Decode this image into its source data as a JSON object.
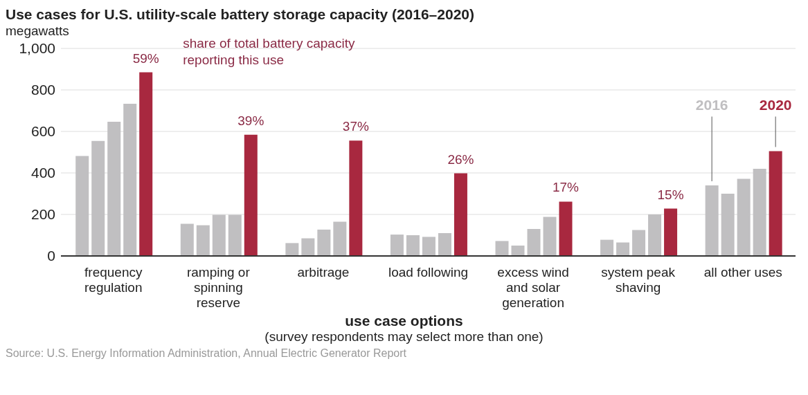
{
  "chart_data": {
    "type": "bar",
    "title": "Use cases for U.S. utility-scale battery storage capacity (2016–2020)",
    "ylabel": "megawatts",
    "xlabel": "use case options",
    "categories": [
      "frequency regulation",
      "ramping or spinning reserve",
      "arbitrage",
      "load following",
      "excess wind and solar generation",
      "system peak shaving",
      "all other uses"
    ],
    "series": [
      {
        "name": "2016",
        "color": "#c0bfc1",
        "values": [
          482,
          155,
          62,
          103,
          72,
          78,
          340
        ]
      },
      {
        "color": "#c0bfc1",
        "values": [
          554,
          148,
          85,
          100,
          50,
          65,
          300
        ]
      },
      {
        "color": "#c0bfc1",
        "values": [
          647,
          198,
          127,
          92,
          130,
          125,
          372
        ]
      },
      {
        "color": "#c0bfc1",
        "values": [
          733,
          198,
          165,
          110,
          188,
          200,
          420
        ]
      },
      {
        "name": "2020",
        "color": "#a8283f",
        "values": [
          885,
          584,
          556,
          398,
          262,
          228,
          505
        ]
      }
    ],
    "ylim": [
      0,
      1000
    ],
    "yticks": [
      0,
      200,
      400,
      600,
      800,
      {
        "value": 1000,
        "label": "1,000"
      }
    ],
    "grid": "y",
    "legend": false,
    "annotations": [
      "59%",
      "39%",
      "37%",
      "26%",
      "17%",
      "15%",
      "share of total battery capacity reporting this use",
      "(survey respondents may select more than one)",
      "Source: U.S. Energy Information Administration, Annual Electric Generator Report"
    ]
  }
}
